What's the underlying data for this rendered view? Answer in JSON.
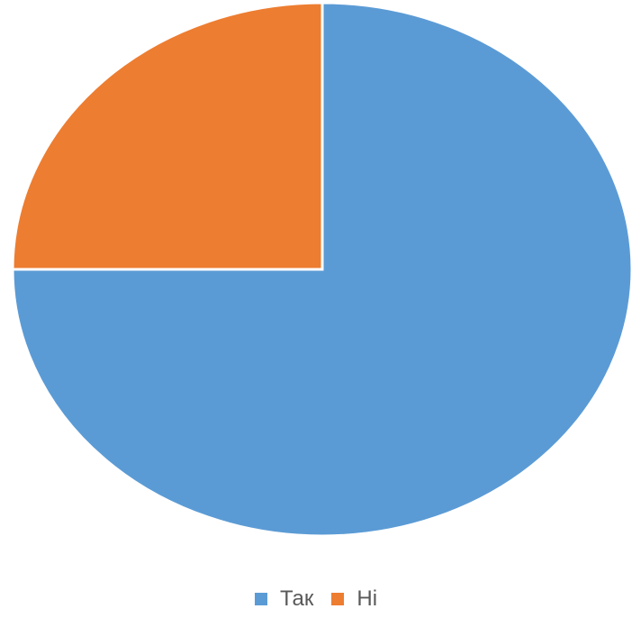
{
  "chart_data": {
    "type": "pie",
    "categories": [
      "Так",
      "Ні"
    ],
    "values": [
      75,
      25
    ],
    "colors": [
      "#5B9BD5",
      "#ED7D31"
    ],
    "start_angle_deg": 0,
    "direction": "clockwise",
    "legend": {
      "position": "bottom",
      "entries": [
        "Так",
        "Ні"
      ]
    }
  }
}
